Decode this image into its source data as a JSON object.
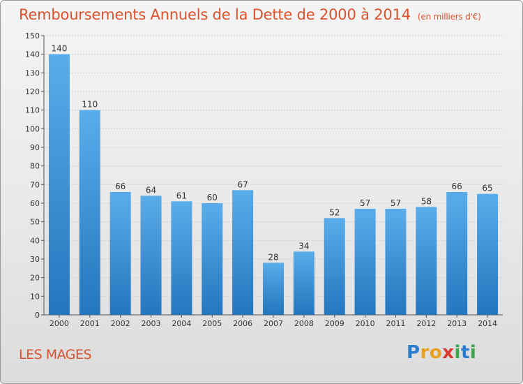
{
  "header": {
    "title": "Remboursements Annuels de la Dette de 2000 à 2014",
    "unit": "(en milliers d'€)"
  },
  "footer": {
    "commune": "LES MAGES",
    "brand": "Proxiti",
    "brand_letters": [
      {
        "ch": "P",
        "color": "#2a7fd0"
      },
      {
        "ch": "r",
        "color": "#e8a020"
      },
      {
        "ch": "o",
        "color": "#e8a020"
      },
      {
        "ch": "x",
        "color": "#d93a2f"
      },
      {
        "ch": "i",
        "color": "#3aa64a"
      },
      {
        "ch": "t",
        "color": "#2a7fd0"
      },
      {
        "ch": "i",
        "color": "#3aa64a"
      }
    ]
  },
  "colors": {
    "bar_top": "#5aacea",
    "bar_bottom": "#2476be",
    "accent": "#d9532f"
  },
  "chart_data": {
    "type": "bar",
    "categories": [
      "2000",
      "2001",
      "2002",
      "2003",
      "2004",
      "2005",
      "2006",
      "2007",
      "2008",
      "2009",
      "2010",
      "2011",
      "2012",
      "2013",
      "2014"
    ],
    "values": [
      140,
      110,
      66,
      64,
      61,
      60,
      67,
      28,
      34,
      52,
      57,
      57,
      58,
      66,
      65
    ],
    "ylim": [
      0,
      150
    ],
    "yticks": [
      0,
      10,
      20,
      30,
      40,
      50,
      60,
      70,
      80,
      90,
      100,
      110,
      120,
      130,
      140,
      150
    ],
    "grid": true,
    "xlabel": "",
    "ylabel": ""
  }
}
